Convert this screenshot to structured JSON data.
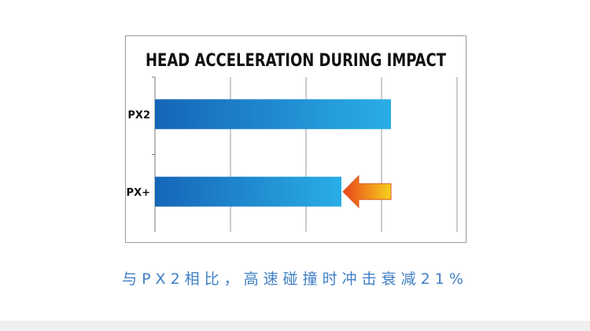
{
  "chart_data": {
    "type": "bar",
    "orientation": "horizontal",
    "title": "HEAD ACCELERATION DURING IMPACT",
    "categories": [
      "PX2",
      "PX+"
    ],
    "values": [
      100,
      79
    ],
    "xlim": [
      0,
      128
    ],
    "grid": true,
    "annotations": [
      {
        "type": "arrow",
        "target": "PX+",
        "color_from": "#f6d21c",
        "color_to": "#e8431a"
      }
    ]
  },
  "caption": "与PX2相比，高速碰撞时冲击衰减21%",
  "colors": {
    "bar_light": "#2aaee6",
    "bar_dark": "#1565b8",
    "caption": "#3f7fc4",
    "footer": "#efefef"
  }
}
